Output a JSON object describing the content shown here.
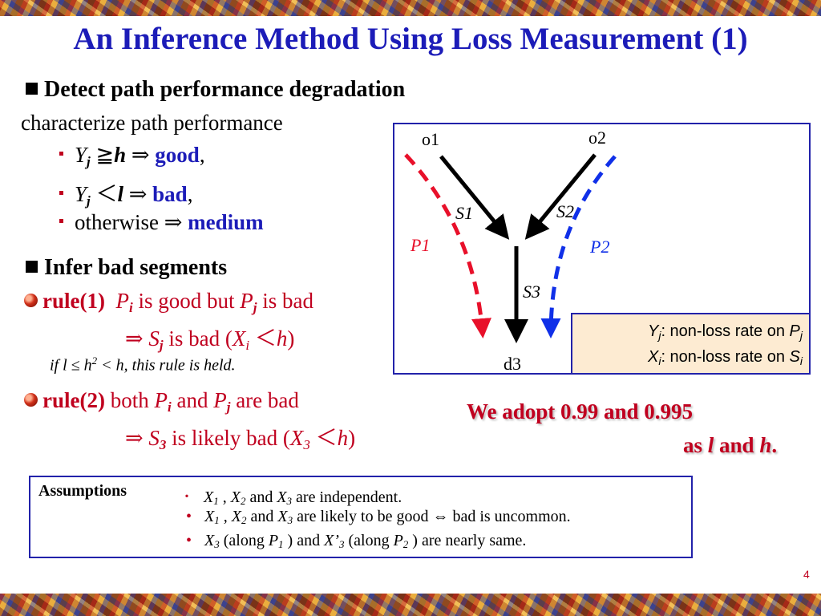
{
  "title": "An Inference Method Using Loss Measurement (1)",
  "section1": {
    "heading": "Detect path performance degradation",
    "intro": "characterize path performance",
    "items": [
      {
        "var": "Y",
        "sub": "j",
        "op": " ≧",
        "thr": "h",
        "arrow": " ⇒ ",
        "result": "good",
        "tail": ","
      },
      {
        "var": "Y",
        "sub": "j",
        "op": " ＜",
        "thr": "l",
        "arrow": " ⇒ ",
        "result": "bad",
        "tail": ","
      },
      {
        "text": "otherwise ⇒ ",
        "result": "medium"
      }
    ]
  },
  "section2": {
    "heading": "Infer bad segments",
    "rule1": {
      "label": "rule(1)",
      "p1": "P",
      "p1sub": "i",
      "mid": " is good but ",
      "p2": "P",
      "p2sub": "j",
      "end": " is bad",
      "line2_arrow": "⇒  ",
      "s": "S",
      "ssub": "j",
      "line2_mid": " is bad (",
      "x": "X",
      "xsub": "i",
      "line2_op": " ＜",
      "line2_h": "h",
      "line2_end": ")",
      "cond_if": "if  l ≤  h",
      "cond_sup": "2",
      "cond_rest": " < h, this rule is held."
    },
    "rule2": {
      "label": "rule(2)",
      "pre": " both ",
      "p1": "P",
      "p1sub": "i",
      "mid": " and ",
      "p2": "P",
      "p2sub": "j",
      "end": " are bad",
      "line2_arrow": "⇒ ",
      "s": "S",
      "ssub": "3",
      "line2_mid": " is likely bad (",
      "x": "X",
      "xsub": "3",
      "line2_op": " ＜",
      "line2_h": "h",
      "line2_end": ")"
    }
  },
  "diagram": {
    "o1": "o1",
    "o2": "o2",
    "d3": "d3",
    "s1": "S1",
    "s2": "S2",
    "s3": "S3",
    "p1": "P1",
    "p2": "P2",
    "legend": [
      {
        "v": "Y",
        "sub": "j",
        "text": ": non-loss rate on ",
        "p": "P",
        "psub": "j"
      },
      {
        "v": "X",
        "sub": "i",
        "text": ": non-loss rate on ",
        "p": "S",
        "psub": "i"
      }
    ]
  },
  "adopt": {
    "line1": "We adopt 0.99 and 0.995",
    "as": "as ",
    "l": "l",
    "and": " and ",
    "h": "h",
    "end": "."
  },
  "assumptions": {
    "label": "Assumptions",
    "bullet_first": "･",
    "bullet": "•",
    "lines": [
      {
        "parts": [
          "X",
          "1",
          " , ",
          "X",
          "2",
          " and ",
          "X",
          "3",
          " are independent."
        ]
      },
      {
        "parts": [
          "X",
          "1",
          " , ",
          "X",
          "2",
          " and ",
          "X",
          "3",
          " are likely to be good ⇔ bad is uncommon."
        ]
      },
      {
        "parts": [
          "X",
          "3",
          "  (along ",
          "P",
          "1",
          " ) and ",
          "X’",
          "3",
          " (along ",
          "P",
          "2",
          " ) are nearly same."
        ]
      }
    ]
  },
  "page_number": "4",
  "colors": {
    "title": "#1c1cb8",
    "accent": "#c0001f",
    "legend_bg": "#fdebd2",
    "path1": "#e8102a",
    "path2": "#1030e8"
  }
}
